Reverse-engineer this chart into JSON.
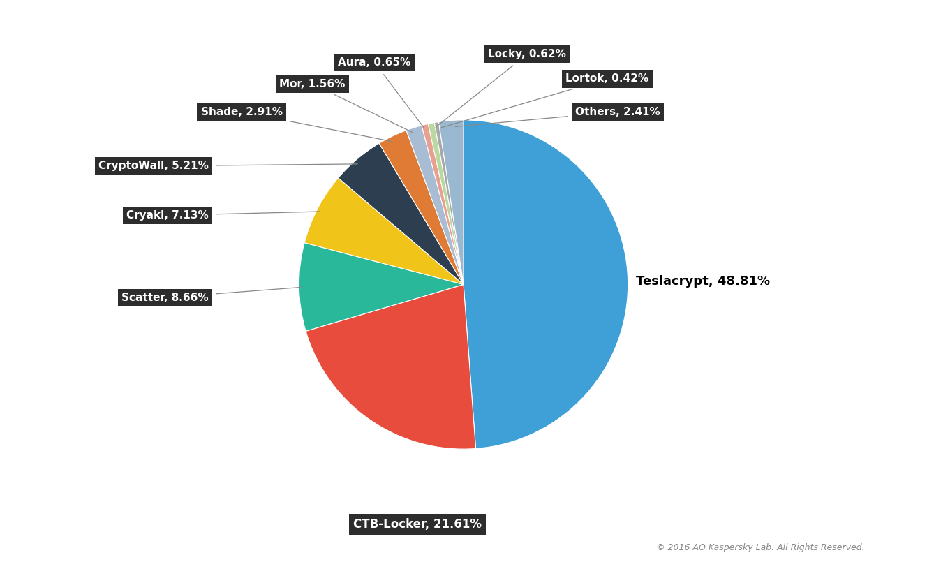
{
  "labels": [
    "Teslacrypt",
    "CTB-Locker",
    "Scatter",
    "Cryakl",
    "CryptoWall",
    "Shade",
    "Mor",
    "Aura",
    "Locky",
    "Lortok",
    "Others"
  ],
  "values": [
    48.81,
    21.61,
    8.66,
    7.13,
    5.21,
    2.91,
    1.56,
    0.65,
    0.62,
    0.42,
    2.41
  ],
  "colors": [
    "#3fa0d8",
    "#e84c3d",
    "#2ab89a",
    "#f0c419",
    "#2c3e50",
    "#e07b35",
    "#a8bcd4",
    "#e8a090",
    "#b8d9a0",
    "#a8a8a8",
    "#9ab8d0"
  ],
  "label_texts": [
    "Teslacrypt, 48.81%",
    "CTB-Locker, 21.61%",
    "Scatter, 8.66%",
    "Cryakl, 7.13%",
    "CryptoWall, 5.21%",
    "Shade, 2.91%",
    "Mor, 1.56%",
    "Aura, 0.65%",
    "Locky, 0.62%",
    "Lortok, 0.42%",
    "Others, 2.41%"
  ],
  "copyright": "© 2016 AO Kaspersky Lab. All Rights Reserved.",
  "background_color": "#ffffff",
  "startangle": 90,
  "label_positions": {
    "Teslacrypt": [
      1.05,
      0.02,
      "left",
      "center"
    ],
    "CTB-Locker": [
      -0.28,
      -1.42,
      "center",
      "top"
    ],
    "Scatter": [
      -1.55,
      -0.08,
      "right",
      "center"
    ],
    "Cryakl": [
      -1.55,
      0.42,
      "right",
      "center"
    ],
    "CryptoWall": [
      -1.55,
      0.72,
      "right",
      "center"
    ],
    "Shade": [
      -1.1,
      1.05,
      "right",
      "center"
    ],
    "Mor": [
      -0.72,
      1.22,
      "right",
      "center"
    ],
    "Aura": [
      -0.32,
      1.35,
      "right",
      "center"
    ],
    "Locky": [
      0.15,
      1.4,
      "left",
      "center"
    ],
    "Lortok": [
      0.62,
      1.25,
      "left",
      "center"
    ],
    "Others": [
      0.68,
      1.05,
      "left",
      "center"
    ]
  }
}
